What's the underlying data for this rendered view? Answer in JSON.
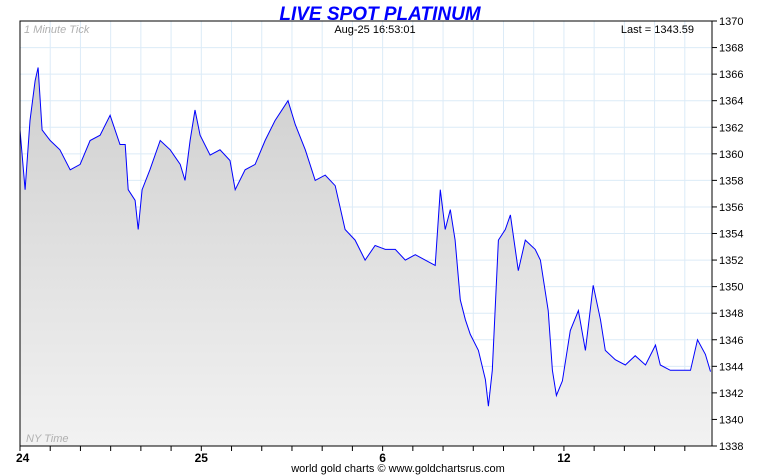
{
  "chart_data": {
    "type": "area",
    "title": "LIVE SPOT PLATINUM",
    "interval_label": "1 Minute Tick",
    "timestamp": "Aug-25  16:53:01",
    "last_label": "Last = 1343.59",
    "timezone_label": "NY Time",
    "footer": "world gold charts © www.goldchartsrus.com",
    "ylim": [
      1338,
      1370
    ],
    "yticks": [
      1338,
      1340,
      1342,
      1344,
      1346,
      1348,
      1350,
      1352,
      1354,
      1356,
      1358,
      1360,
      1362,
      1364,
      1366,
      1368,
      1370
    ],
    "xlim": [
      0,
      22.9
    ],
    "xticks": [
      {
        "x": 0,
        "label": "24"
      },
      {
        "x": 6,
        "label": "25"
      },
      {
        "x": 12,
        "label": "6"
      },
      {
        "x": 18,
        "label": "12"
      }
    ],
    "grid": true,
    "colors": {
      "line": "#0000ff",
      "fill_top": "#cfcfcf",
      "fill_bottom": "#f2f2f2",
      "grid": "#dcebf7"
    },
    "points": [
      [
        0,
        1361.8
      ],
      [
        0.17,
        1357.3
      ],
      [
        0.33,
        1362.5
      ],
      [
        0.5,
        1365.5
      ],
      [
        0.6,
        1366.5
      ],
      [
        0.73,
        1361.8
      ],
      [
        1.0,
        1361
      ],
      [
        1.32,
        1360.3
      ],
      [
        1.66,
        1358.8
      ],
      [
        1.99,
        1359.2
      ],
      [
        2.32,
        1361
      ],
      [
        2.65,
        1361.4
      ],
      [
        2.98,
        1362.9
      ],
      [
        3.31,
        1360.7
      ],
      [
        3.48,
        1360.7
      ],
      [
        3.58,
        1357.3
      ],
      [
        3.81,
        1356.5
      ],
      [
        3.91,
        1354.3
      ],
      [
        4.04,
        1357.3
      ],
      [
        4.3,
        1358.8
      ],
      [
        4.64,
        1361
      ],
      [
        4.97,
        1360.3
      ],
      [
        5.3,
        1359.2
      ],
      [
        5.46,
        1358
      ],
      [
        5.63,
        1361
      ],
      [
        5.79,
        1363.3
      ],
      [
        5.96,
        1361.4
      ],
      [
        6.29,
        1359.9
      ],
      [
        6.62,
        1360.3
      ],
      [
        6.95,
        1359.5
      ],
      [
        7.12,
        1357.3
      ],
      [
        7.45,
        1358.8
      ],
      [
        7.78,
        1359.2
      ],
      [
        8.11,
        1361
      ],
      [
        8.44,
        1362.5
      ],
      [
        8.87,
        1364
      ],
      [
        9.11,
        1362.2
      ],
      [
        9.44,
        1360.3
      ],
      [
        9.77,
        1358
      ],
      [
        10.1,
        1358.4
      ],
      [
        10.43,
        1357.6
      ],
      [
        10.76,
        1354.3
      ],
      [
        11.09,
        1353.5
      ],
      [
        11.42,
        1352
      ],
      [
        11.75,
        1353.1
      ],
      [
        12.09,
        1352.8
      ],
      [
        12.42,
        1352.8
      ],
      [
        12.75,
        1352
      ],
      [
        13.08,
        1352.4
      ],
      [
        13.41,
        1352
      ],
      [
        13.74,
        1351.6
      ],
      [
        13.91,
        1357.3
      ],
      [
        14.07,
        1354.3
      ],
      [
        14.24,
        1355.8
      ],
      [
        14.4,
        1353.5
      ],
      [
        14.57,
        1349
      ],
      [
        14.74,
        1347.5
      ],
      [
        14.9,
        1346.4
      ],
      [
        15.17,
        1345.2
      ],
      [
        15.4,
        1343
      ],
      [
        15.5,
        1341
      ],
      [
        15.63,
        1343.7
      ],
      [
        15.83,
        1353.5
      ],
      [
        16.06,
        1354.3
      ],
      [
        16.23,
        1355.4
      ],
      [
        16.49,
        1351.2
      ],
      [
        16.72,
        1353.5
      ],
      [
        17.05,
        1352.8
      ],
      [
        17.22,
        1352
      ],
      [
        17.48,
        1348.2
      ],
      [
        17.62,
        1343.7
      ],
      [
        17.75,
        1341.8
      ],
      [
        17.95,
        1342.9
      ],
      [
        18.21,
        1346.7
      ],
      [
        18.48,
        1348.2
      ],
      [
        18.71,
        1345.2
      ],
      [
        18.97,
        1350.1
      ],
      [
        19.21,
        1347.5
      ],
      [
        19.37,
        1345.2
      ],
      [
        19.7,
        1344.5
      ],
      [
        20.03,
        1344.1
      ],
      [
        20.36,
        1344.8
      ],
      [
        20.7,
        1344.1
      ],
      [
        21.03,
        1345.6
      ],
      [
        21.19,
        1344.1
      ],
      [
        21.52,
        1343.7
      ],
      [
        21.85,
        1343.7
      ],
      [
        22.19,
        1343.7
      ],
      [
        22.42,
        1346
      ],
      [
        22.68,
        1344.9
      ],
      [
        22.85,
        1343.6
      ]
    ]
  }
}
